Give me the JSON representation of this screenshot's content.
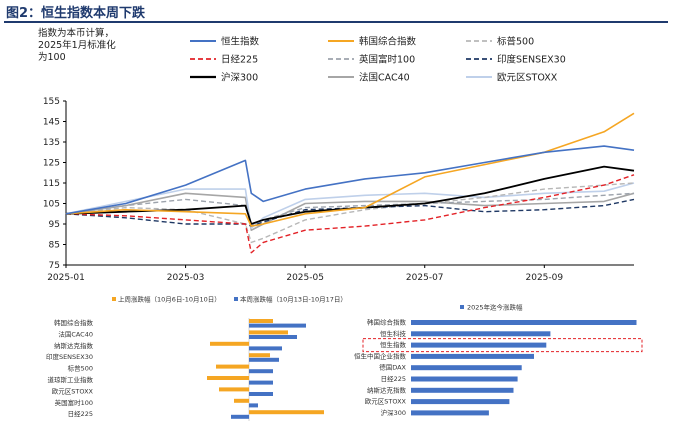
{
  "figure_title": "图2：恒生指数本周下跌",
  "chart_data": [
    {
      "type": "line",
      "title": "",
      "ylabel": "指数为本币计算，2025年1月标准化为100",
      "ylabel_lines": [
        "指数为本币计算，",
        "2025年1月标准化",
        "为100"
      ],
      "xlabel": "",
      "ylim": [
        75,
        155
      ],
      "yticks": [
        "75",
        "85",
        "95",
        "105",
        "115",
        "125",
        "135",
        "145",
        "155"
      ],
      "xticks": [
        "2025-01",
        "2025-03",
        "2025-05",
        "2025-07",
        "2025-09"
      ],
      "x_months": [
        0,
        1,
        2,
        3,
        3.1,
        3.3,
        4,
        5,
        6,
        7,
        8,
        9,
        9.5
      ],
      "grid": false,
      "legend": "top",
      "series": [
        {
          "name": "恒生指数",
          "color": "#4472C4",
          "style": "solid",
          "width": 1.6,
          "values": [
            100,
            105,
            114,
            126,
            110,
            106,
            112,
            117,
            120,
            125,
            130,
            133,
            131
          ]
        },
        {
          "name": "韩国综合指数",
          "color": "#F5A623",
          "style": "solid",
          "width": 1.6,
          "values": [
            100,
            102,
            101,
            100,
            94,
            95,
            100,
            103,
            118,
            124,
            130,
            140,
            149
          ]
        },
        {
          "name": "标普500",
          "color": "#B7B7B7",
          "style": "dash",
          "width": 1.4,
          "values": [
            100,
            103,
            102,
            95,
            86,
            88,
            97,
            102,
            105,
            108,
            112,
            114,
            115
          ]
        },
        {
          "name": "日经225",
          "color": "#E32227",
          "style": "dash",
          "width": 1.4,
          "values": [
            100,
            99,
            97,
            95,
            81,
            86,
            92,
            94,
            97,
            103,
            108,
            114,
            119
          ]
        },
        {
          "name": "英国富时100",
          "color": "#9DA3AC",
          "style": "dash",
          "width": 1.4,
          "values": [
            100,
            104,
            107,
            104,
            95,
            97,
            103,
            104,
            105,
            106,
            107,
            109,
            110
          ]
        },
        {
          "name": "印度SENSEX30",
          "color": "#1F3864",
          "style": "dash",
          "width": 1.4,
          "values": [
            100,
            98,
            95,
            95,
            94,
            96,
            102,
            103,
            104,
            101,
            102,
            104,
            107
          ]
        },
        {
          "name": "沪深300",
          "color": "#000000",
          "style": "solid",
          "width": 1.8,
          "values": [
            100,
            101,
            102,
            104,
            95,
            97,
            101,
            103,
            105,
            110,
            117,
            123,
            121
          ]
        },
        {
          "name": "法国CAC40",
          "color": "#A6A6A6",
          "style": "solid",
          "width": 1.6,
          "values": [
            100,
            104,
            110,
            108,
            92,
            95,
            105,
            106,
            106,
            104,
            105,
            106,
            110
          ]
        },
        {
          "name": "欧元区STOXX",
          "color": "#BFD0EA",
          "style": "solid",
          "width": 1.6,
          "values": [
            100,
            106,
            112,
            112,
            93,
            98,
            107,
            109,
            110,
            108,
            110,
            111,
            115
          ]
        }
      ]
    },
    {
      "type": "bar",
      "orientation": "horizontal",
      "title": "",
      "legend": "top",
      "series": [
        {
          "name": "上周涨跌幅（10月6日-10月10日）",
          "color": "#F5A623",
          "values": [
            0.8,
            1.3,
            -1.3,
            0.7,
            -1.1,
            -1.4,
            -1.0,
            -0.5,
            2.5
          ]
        },
        {
          "name": "本周涨跌幅（10月13日-10月17日）",
          "color": "#4472C4",
          "values": [
            1.9,
            1.6,
            1.1,
            1.0,
            0.8,
            0.8,
            0.8,
            0.3,
            -0.6
          ]
        }
      ],
      "categories": [
        "韩国综合指数",
        "法国CAC40",
        "纳斯达克指数",
        "印度SENSEX30",
        "标普500",
        "道琼斯工业指数",
        "欧元区STOXX",
        "英国富时100",
        "日经225"
      ],
      "xlim": [
        -3,
        3
      ]
    },
    {
      "type": "bar",
      "orientation": "horizontal",
      "title": "",
      "legend": "top",
      "series": [
        {
          "name": "2025年迄今涨跌幅",
          "color": "#4472C4",
          "values": [
            55,
            34,
            33,
            30,
            27,
            26,
            25,
            24,
            19
          ]
        }
      ],
      "categories": [
        "韩国综合指数",
        "恒生科技",
        "恒生指数",
        "恒生中国企业指数",
        "德国DAX",
        "日经225",
        "纳斯达克指数",
        "欧元区STOXX",
        "沪深300"
      ],
      "xlim": [
        0,
        56
      ],
      "highlight": "恒生指数"
    }
  ]
}
